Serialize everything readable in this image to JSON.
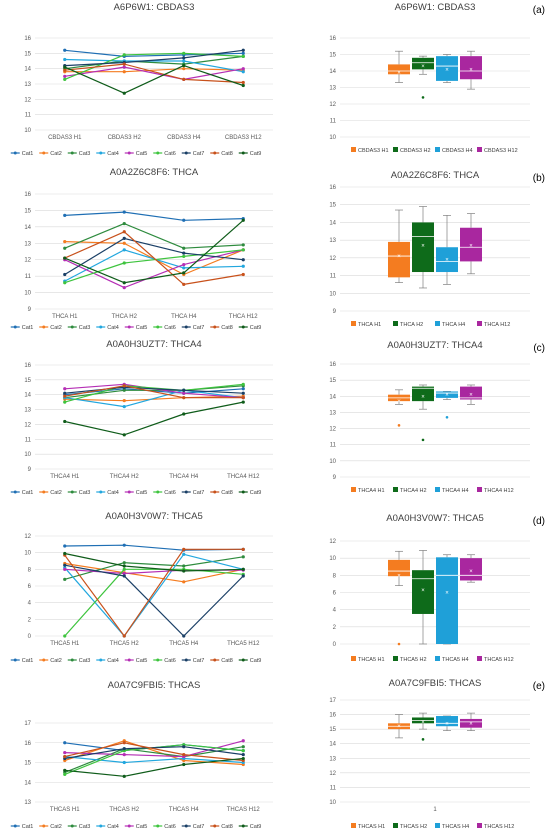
{
  "colors": {
    "line_series": [
      "#1f6fb4",
      "#f47c20",
      "#2e8b3e",
      "#22a7de",
      "#b52fb5",
      "#3ec43e",
      "#1a3f66",
      "#c8511b",
      "#0f5c1a"
    ],
    "box_series": [
      "#f47c20",
      "#0e6b1a",
      "#1fa0d8",
      "#a9279f"
    ]
  },
  "chart_data": [
    {
      "type": "line",
      "title": "A6P6W1: CBDAS3",
      "categories": [
        "CBDAS3 H1",
        "CBDAS3 H2",
        "CBDAS3 H4",
        "CBDAS3 H12"
      ],
      "ylim": [
        10,
        16
      ],
      "yticks": [
        "10",
        "11",
        "12",
        "13",
        "14",
        "15",
        "16"
      ],
      "legend": "bottom",
      "grid": true,
      "series": [
        {
          "name": "Cat1",
          "values": [
            15.2,
            14.8,
            14.9,
            15.0
          ]
        },
        {
          "name": "Cat2",
          "values": [
            13.8,
            13.8,
            14.0,
            13.9
          ]
        },
        {
          "name": "Cat3",
          "values": [
            14.0,
            14.5,
            14.3,
            14.8
          ]
        },
        {
          "name": "Cat4",
          "values": [
            14.6,
            14.5,
            14.5,
            13.8
          ]
        },
        {
          "name": "Cat5",
          "values": [
            13.5,
            14.1,
            13.3,
            14.0
          ]
        },
        {
          "name": "Cat6",
          "values": [
            13.3,
            14.9,
            15.0,
            14.8
          ]
        },
        {
          "name": "Cat7",
          "values": [
            14.2,
            14.4,
            14.7,
            15.2
          ]
        },
        {
          "name": "Cat8",
          "values": [
            13.9,
            14.3,
            13.3,
            13.1
          ]
        },
        {
          "name": "Cat9",
          "values": [
            14.1,
            12.4,
            14.2,
            12.9
          ]
        }
      ]
    },
    {
      "type": "box",
      "title": "A6P6W1: CBDAS3",
      "panel_label": "(a)",
      "ylim": [
        10,
        16
      ],
      "yticks": [
        "10",
        "11",
        "12",
        "13",
        "14",
        "15",
        "16"
      ],
      "legend": "bottom",
      "grid": true,
      "series": [
        {
          "name": "CBDAS3 H1",
          "min": 13.3,
          "q1": 13.8,
          "median": 14.0,
          "mean": 13.9,
          "q3": 14.4,
          "max": 15.2,
          "outliers": []
        },
        {
          "name": "CBDAS3 H2",
          "min": 13.8,
          "q1": 14.1,
          "median": 14.5,
          "mean": 14.3,
          "q3": 14.8,
          "max": 14.9,
          "outliers": [
            12.4
          ]
        },
        {
          "name": "CBDAS3 H4",
          "min": 13.3,
          "q1": 13.4,
          "median": 14.3,
          "mean": 14.1,
          "q3": 14.9,
          "max": 15.0,
          "outliers": []
        },
        {
          "name": "CBDAS3 H12",
          "min": 12.9,
          "q1": 13.5,
          "median": 14.0,
          "mean": 14.1,
          "q3": 14.9,
          "max": 15.2,
          "outliers": []
        }
      ]
    },
    {
      "type": "line",
      "title": "A0A2Z6C8F6: THCA",
      "categories": [
        "THCA H1",
        "THCA H2",
        "THCA H4",
        "THCA H12"
      ],
      "ylim": [
        9,
        16
      ],
      "yticks": [
        "9",
        "10",
        "11",
        "12",
        "13",
        "14",
        "15",
        "16"
      ],
      "legend": "bottom",
      "grid": true,
      "series": [
        {
          "name": "Cat1",
          "values": [
            14.7,
            14.9,
            14.4,
            14.5
          ]
        },
        {
          "name": "Cat2",
          "values": [
            13.1,
            13.0,
            11.1,
            12.6
          ]
        },
        {
          "name": "Cat3",
          "values": [
            12.7,
            14.2,
            12.7,
            12.9
          ]
        },
        {
          "name": "Cat4",
          "values": [
            10.7,
            12.6,
            11.5,
            11.6
          ]
        },
        {
          "name": "Cat5",
          "values": [
            12.0,
            10.3,
            11.7,
            12.6
          ]
        },
        {
          "name": "Cat6",
          "values": [
            10.6,
            11.8,
            12.2,
            12.6
          ]
        },
        {
          "name": "Cat7",
          "values": [
            11.1,
            13.3,
            12.4,
            12.0
          ]
        },
        {
          "name": "Cat8",
          "values": [
            12.1,
            13.7,
            10.5,
            11.1
          ]
        },
        {
          "name": "Cat9",
          "values": [
            12.1,
            10.6,
            11.2,
            14.4
          ]
        }
      ]
    },
    {
      "type": "box",
      "title": "A0A2Z6C8F6: THCA",
      "panel_label": "(b)",
      "ylim": [
        9,
        16
      ],
      "yticks": [
        "9",
        "10",
        "11",
        "12",
        "13",
        "14",
        "15",
        "16"
      ],
      "legend": "bottom",
      "grid": true,
      "series": [
        {
          "name": "THCA H1",
          "min": 10.6,
          "q1": 10.9,
          "median": 12.1,
          "mean": 12.1,
          "q3": 12.9,
          "max": 14.7,
          "outliers": []
        },
        {
          "name": "THCA H2",
          "min": 10.3,
          "q1": 11.2,
          "median": 13.2,
          "mean": 12.7,
          "q3": 14.0,
          "max": 14.9,
          "outliers": []
        },
        {
          "name": "THCA H4",
          "min": 10.5,
          "q1": 11.2,
          "median": 11.8,
          "mean": 11.9,
          "q3": 12.6,
          "max": 14.4,
          "outliers": []
        },
        {
          "name": "THCA H12",
          "min": 11.1,
          "q1": 11.8,
          "median": 12.6,
          "mean": 12.7,
          "q3": 13.7,
          "max": 14.5,
          "outliers": []
        }
      ]
    },
    {
      "type": "line",
      "title": "A0A0H3UZT7: THCA4",
      "categories": [
        "THCA4 H1",
        "THCA4 H2",
        "THCA4 H4",
        "THCA4 H12"
      ],
      "ylim": [
        9,
        16
      ],
      "yticks": [
        "9",
        "10",
        "11",
        "12",
        "13",
        "14",
        "15",
        "16"
      ],
      "legend": "bottom",
      "grid": true,
      "series": [
        {
          "name": "Cat1",
          "values": [
            14.0,
            14.4,
            14.1,
            14.4
          ]
        },
        {
          "name": "Cat2",
          "values": [
            13.7,
            13.6,
            13.8,
            13.9
          ]
        },
        {
          "name": "Cat3",
          "values": [
            13.8,
            14.3,
            14.3,
            14.6
          ]
        },
        {
          "name": "Cat4",
          "values": [
            13.8,
            13.2,
            14.3,
            13.8
          ]
        },
        {
          "name": "Cat5",
          "values": [
            14.4,
            14.7,
            14.1,
            13.8
          ]
        },
        {
          "name": "Cat6",
          "values": [
            13.5,
            14.6,
            14.3,
            14.7
          ]
        },
        {
          "name": "Cat7",
          "values": [
            14.1,
            14.5,
            14.3,
            14.1
          ]
        },
        {
          "name": "Cat8",
          "values": [
            13.9,
            14.6,
            13.8,
            13.8
          ]
        },
        {
          "name": "Cat9",
          "values": [
            12.2,
            11.3,
            12.7,
            13.5
          ]
        }
      ]
    },
    {
      "type": "box",
      "title": "A0A0H3UZT7: THCA4",
      "panel_label": "(c)",
      "ylim": [
        9,
        16
      ],
      "yticks": [
        "9",
        "10",
        "11",
        "12",
        "13",
        "14",
        "15",
        "16"
      ],
      "legend": "bottom",
      "grid": true,
      "series": [
        {
          "name": "THCA4 H1",
          "min": 13.5,
          "q1": 13.7,
          "median": 13.9,
          "mean": 13.7,
          "q3": 14.1,
          "max": 14.4,
          "outliers": [
            12.2
          ]
        },
        {
          "name": "THCA4 H2",
          "min": 13.2,
          "q1": 13.7,
          "median": 14.5,
          "mean": 14.0,
          "q3": 14.6,
          "max": 14.7,
          "outliers": [
            11.3
          ]
        },
        {
          "name": "THCA4 H4",
          "min": 13.8,
          "q1": 13.9,
          "median": 14.2,
          "mean": 14.1,
          "q3": 14.3,
          "max": 14.3,
          "outliers": [
            12.7
          ]
        },
        {
          "name": "THCA4 H12",
          "min": 13.5,
          "q1": 13.8,
          "median": 13.9,
          "mean": 14.1,
          "q3": 14.6,
          "max": 14.7,
          "outliers": []
        }
      ]
    },
    {
      "type": "line",
      "title": "A0A0H3V0W7: THCA5",
      "categories": [
        "THCA5 H1",
        "THCA5 H2",
        "THCA5 H4",
        "THCA5 H12"
      ],
      "ylim": [
        0,
        12
      ],
      "yticks": [
        "0",
        "2",
        "4",
        "6",
        "8",
        "10",
        "12"
      ],
      "legend": "bottom",
      "grid": true,
      "series": [
        {
          "name": "Cat1",
          "values": [
            10.8,
            10.9,
            10.3,
            10.4
          ]
        },
        {
          "name": "Cat2",
          "values": [
            8.7,
            7.6,
            6.5,
            8.0
          ]
        },
        {
          "name": "Cat3",
          "values": [
            6.8,
            8.8,
            8.4,
            9.5
          ]
        },
        {
          "name": "Cat4",
          "values": [
            8.2,
            0.0,
            9.8,
            8.0
          ]
        },
        {
          "name": "Cat5",
          "values": [
            8.0,
            7.5,
            7.9,
            7.9
          ]
        },
        {
          "name": "Cat6",
          "values": [
            0.0,
            8.0,
            8.0,
            7.4
          ]
        },
        {
          "name": "Cat7",
          "values": [
            8.5,
            7.2,
            0.0,
            7.2
          ]
        },
        {
          "name": "Cat8",
          "values": [
            9.7,
            0.0,
            10.4,
            10.4
          ]
        },
        {
          "name": "Cat9",
          "values": [
            9.9,
            8.4,
            7.8,
            8.0
          ]
        }
      ]
    },
    {
      "type": "box",
      "title": "A0A0H3V0W7: THCA5",
      "panel_label": "(d)",
      "ylim": [
        0,
        12
      ],
      "yticks": [
        "0",
        "2",
        "4",
        "6",
        "8",
        "10",
        "12"
      ],
      "legend": "bottom",
      "grid": true,
      "series": [
        {
          "name": "THCA5 H1",
          "min": 6.8,
          "q1": 7.9,
          "median": 8.5,
          "mean": 8.0,
          "q3": 9.8,
          "max": 10.8,
          "outliers": [
            0.0
          ]
        },
        {
          "name": "THCA5 H2",
          "min": 0.0,
          "q1": 3.5,
          "median": 7.6,
          "mean": 6.3,
          "q3": 8.6,
          "max": 10.9,
          "outliers": []
        },
        {
          "name": "THCA5 H4",
          "min": 0.0,
          "q1": 0.0,
          "median": 8.0,
          "mean": 6.0,
          "q3": 10.1,
          "max": 10.4,
          "outliers": []
        },
        {
          "name": "THCA5 H12",
          "min": 7.2,
          "q1": 7.4,
          "median": 8.0,
          "mean": 8.5,
          "q3": 10.0,
          "max": 10.4,
          "outliers": []
        }
      ]
    },
    {
      "type": "line",
      "title": "A0A7C9FBI5: THCAS",
      "categories": [
        "THCAS H1",
        "THCAS H2",
        "THCAS H4",
        "THCAS H12"
      ],
      "ylim": [
        13,
        17
      ],
      "yticks": [
        "13",
        "14",
        "15",
        "16",
        "17"
      ],
      "legend": "bottom",
      "grid": true,
      "series": [
        {
          "name": "Cat1",
          "values": [
            16.0,
            15.6,
            15.9,
            15.6
          ]
        },
        {
          "name": "Cat2",
          "values": [
            15.1,
            16.1,
            15.1,
            14.9
          ]
        },
        {
          "name": "Cat3",
          "values": [
            14.5,
            15.7,
            15.3,
            15.8
          ]
        },
        {
          "name": "Cat4",
          "values": [
            15.3,
            15.0,
            15.2,
            15.0
          ]
        },
        {
          "name": "Cat5",
          "values": [
            15.5,
            15.4,
            15.3,
            16.1
          ]
        },
        {
          "name": "Cat6",
          "values": [
            14.4,
            15.6,
            15.9,
            15.6
          ]
        },
        {
          "name": "Cat7",
          "values": [
            15.2,
            15.7,
            15.8,
            15.4
          ]
        },
        {
          "name": "Cat8",
          "values": [
            15.3,
            16.0,
            15.4,
            15.1
          ]
        },
        {
          "name": "Cat9",
          "values": [
            14.6,
            14.3,
            14.9,
            15.2
          ]
        }
      ]
    },
    {
      "type": "box",
      "title": "A0A7C9FBI5: THCAS",
      "panel_label": "(e)",
      "ylim": [
        10,
        17
      ],
      "yticks": [
        "10",
        "11",
        "12",
        "13",
        "14",
        "15",
        "16",
        "17"
      ],
      "xticks": [
        "1"
      ],
      "legend": "bottom",
      "grid": true,
      "series": [
        {
          "name": "THCAS H1",
          "min": 14.4,
          "q1": 15.0,
          "median": 15.2,
          "mean": 15.2,
          "q3": 15.4,
          "max": 16.0,
          "outliers": []
        },
        {
          "name": "THCAS H2",
          "min": 15.0,
          "q1": 15.4,
          "median": 15.6,
          "mean": 15.5,
          "q3": 15.8,
          "max": 16.1,
          "outliers": [
            14.3
          ]
        },
        {
          "name": "THCAS H4",
          "min": 14.9,
          "q1": 15.2,
          "median": 15.4,
          "mean": 15.4,
          "q3": 15.9,
          "max": 15.9,
          "outliers": []
        },
        {
          "name": "THCAS H12",
          "min": 14.9,
          "q1": 15.1,
          "median": 15.5,
          "mean": 15.4,
          "q3": 15.7,
          "max": 16.1,
          "outliers": []
        }
      ]
    }
  ]
}
